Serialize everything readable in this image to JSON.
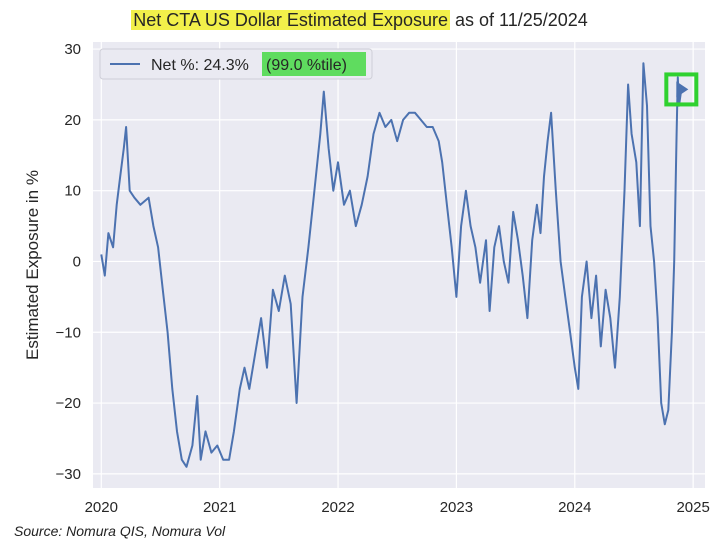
{
  "chart_data": {
    "type": "line",
    "title_highlight": "Net CTA US Dollar Estimated Exposure",
    "title_rest": "as of 11/25/2024",
    "ylabel": "Estimated Exposure in %",
    "xlabel": "",
    "ylim": [
      -32,
      31
    ],
    "xlim": [
      2019.93,
      2025.1
    ],
    "xticks": [
      2020,
      2021,
      2022,
      2023,
      2024,
      2025
    ],
    "yticks": [
      -30,
      -20,
      -10,
      0,
      10,
      20,
      30
    ],
    "grid": true,
    "legend": {
      "placement": "top-left",
      "label": "Net %:  24.3%",
      "highlight": "(99.0 %tile)"
    },
    "current_marker": {
      "x": 2024.9,
      "y": 24.3
    },
    "source": "Source: Nomura QIS, Nomura Vol",
    "series": [
      {
        "name": "Net %",
        "color": "#4c72b0",
        "points": [
          [
            2020.0,
            1
          ],
          [
            2020.03,
            -2
          ],
          [
            2020.06,
            4
          ],
          [
            2020.1,
            2
          ],
          [
            2020.13,
            8
          ],
          [
            2020.16,
            12
          ],
          [
            2020.19,
            16
          ],
          [
            2020.21,
            19
          ],
          [
            2020.24,
            10
          ],
          [
            2020.28,
            9
          ],
          [
            2020.33,
            8
          ],
          [
            2020.4,
            9
          ],
          [
            2020.44,
            5
          ],
          [
            2020.48,
            2
          ],
          [
            2020.52,
            -4
          ],
          [
            2020.56,
            -10
          ],
          [
            2020.6,
            -18
          ],
          [
            2020.64,
            -24
          ],
          [
            2020.68,
            -28
          ],
          [
            2020.72,
            -29
          ],
          [
            2020.77,
            -26
          ],
          [
            2020.81,
            -19
          ],
          [
            2020.84,
            -28
          ],
          [
            2020.88,
            -24
          ],
          [
            2020.93,
            -27
          ],
          [
            2020.98,
            -26
          ],
          [
            2021.03,
            -28
          ],
          [
            2021.08,
            -28
          ],
          [
            2021.12,
            -24
          ],
          [
            2021.17,
            -18
          ],
          [
            2021.21,
            -15
          ],
          [
            2021.25,
            -18
          ],
          [
            2021.3,
            -13
          ],
          [
            2021.35,
            -8
          ],
          [
            2021.4,
            -15
          ],
          [
            2021.45,
            -4
          ],
          [
            2021.5,
            -7
          ],
          [
            2021.55,
            -2
          ],
          [
            2021.6,
            -6
          ],
          [
            2021.65,
            -20
          ],
          [
            2021.7,
            -5
          ],
          [
            2021.75,
            2
          ],
          [
            2021.8,
            10
          ],
          [
            2021.85,
            18
          ],
          [
            2021.88,
            24
          ],
          [
            2021.92,
            16
          ],
          [
            2021.96,
            10
          ],
          [
            2022.0,
            14
          ],
          [
            2022.05,
            8
          ],
          [
            2022.1,
            10
          ],
          [
            2022.15,
            5
          ],
          [
            2022.2,
            8
          ],
          [
            2022.25,
            12
          ],
          [
            2022.3,
            18
          ],
          [
            2022.35,
            21
          ],
          [
            2022.4,
            19
          ],
          [
            2022.45,
            20
          ],
          [
            2022.5,
            17
          ],
          [
            2022.55,
            20
          ],
          [
            2022.6,
            21
          ],
          [
            2022.65,
            21
          ],
          [
            2022.7,
            20
          ],
          [
            2022.75,
            19
          ],
          [
            2022.8,
            19
          ],
          [
            2022.85,
            17
          ],
          [
            2022.88,
            14
          ],
          [
            2022.92,
            8
          ],
          [
            2022.96,
            2
          ],
          [
            2023.0,
            -5
          ],
          [
            2023.04,
            5
          ],
          [
            2023.08,
            10
          ],
          [
            2023.12,
            5
          ],
          [
            2023.16,
            2
          ],
          [
            2023.2,
            -3
          ],
          [
            2023.25,
            3
          ],
          [
            2023.28,
            -7
          ],
          [
            2023.32,
            2
          ],
          [
            2023.36,
            5
          ],
          [
            2023.4,
            0
          ],
          [
            2023.44,
            -3
          ],
          [
            2023.48,
            7
          ],
          [
            2023.52,
            3
          ],
          [
            2023.56,
            -2
          ],
          [
            2023.6,
            -8
          ],
          [
            2023.64,
            3
          ],
          [
            2023.68,
            8
          ],
          [
            2023.71,
            4
          ],
          [
            2023.74,
            12
          ],
          [
            2023.77,
            17
          ],
          [
            2023.8,
            21
          ],
          [
            2023.84,
            10
          ],
          [
            2023.88,
            0
          ],
          [
            2023.92,
            -5
          ],
          [
            2023.96,
            -10
          ],
          [
            2024.0,
            -15
          ],
          [
            2024.03,
            -18
          ],
          [
            2024.06,
            -5
          ],
          [
            2024.1,
            0
          ],
          [
            2024.14,
            -8
          ],
          [
            2024.18,
            -2
          ],
          [
            2024.22,
            -12
          ],
          [
            2024.26,
            -4
          ],
          [
            2024.3,
            -8
          ],
          [
            2024.34,
            -15
          ],
          [
            2024.38,
            -5
          ],
          [
            2024.42,
            10
          ],
          [
            2024.45,
            25
          ],
          [
            2024.48,
            18
          ],
          [
            2024.52,
            14
          ],
          [
            2024.55,
            5
          ],
          [
            2024.58,
            28
          ],
          [
            2024.61,
            22
          ],
          [
            2024.64,
            5
          ],
          [
            2024.67,
            0
          ],
          [
            2024.7,
            -8
          ],
          [
            2024.73,
            -20
          ],
          [
            2024.76,
            -23
          ],
          [
            2024.79,
            -21
          ],
          [
            2024.82,
            -10
          ],
          [
            2024.84,
            0
          ],
          [
            2024.86,
            18
          ],
          [
            2024.87,
            26
          ],
          [
            2024.88,
            22
          ],
          [
            2024.9,
            24.3
          ]
        ]
      }
    ]
  }
}
